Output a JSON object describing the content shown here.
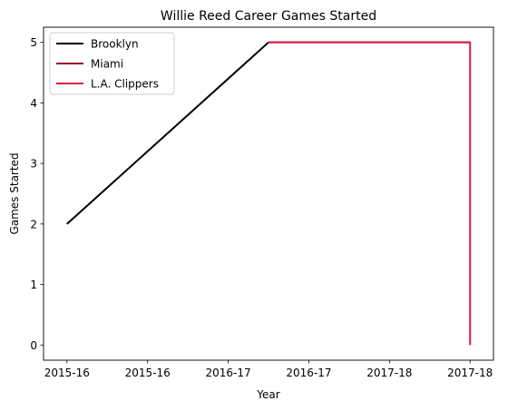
{
  "chart_data": {
    "type": "line",
    "title": "Willie Reed Career Games Started",
    "xlabel": "Year",
    "ylabel": "Games Started",
    "x_ticks": [
      "2015-16",
      "2015-16",
      "2016-17",
      "2016-17",
      "2017-18",
      "2017-18"
    ],
    "xlim": [
      -0.29,
      5.29
    ],
    "ylim": [
      -0.25,
      5.25
    ],
    "y_ticks": [
      0,
      1,
      2,
      3,
      4,
      5
    ],
    "grid": false,
    "legend_position": "top-left",
    "series": [
      {
        "name": "Brooklyn",
        "color": "#000000",
        "x": [
          0,
          2.5
        ],
        "y": [
          2,
          5
        ]
      },
      {
        "name": "Miami",
        "color": "#98002E",
        "x": [
          2.5,
          5
        ],
        "y": [
          5,
          5
        ]
      },
      {
        "name": "L.A. Clippers",
        "color": "#E0194A",
        "x": [
          2.5,
          5,
          5
        ],
        "y": [
          5,
          5,
          0
        ]
      }
    ]
  }
}
